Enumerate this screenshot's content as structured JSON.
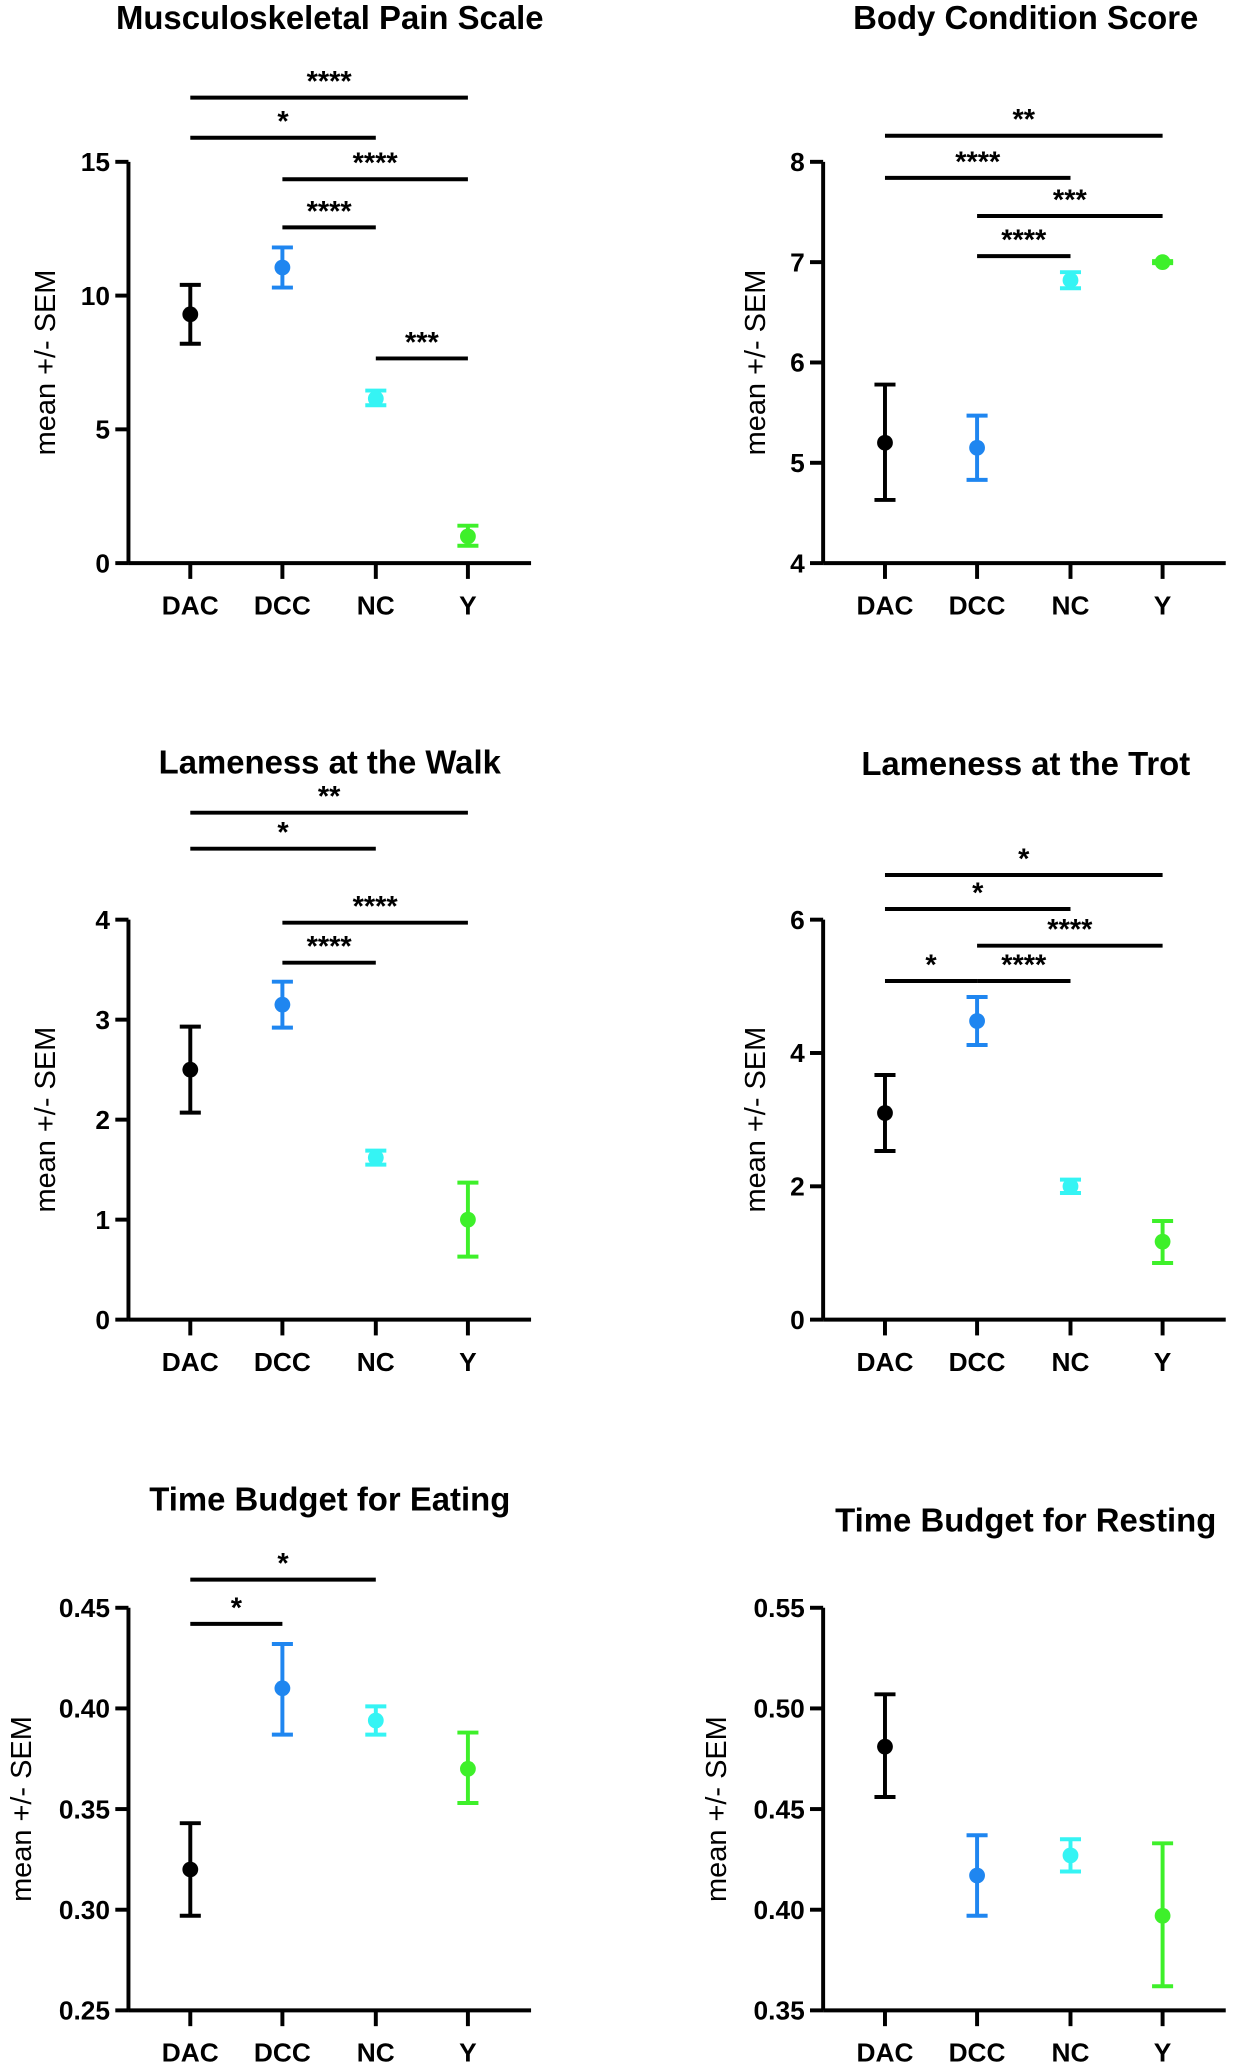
{
  "colors": {
    "DAC": "#000000",
    "DCC": "#1f86f0",
    "NC": "#35f4f4",
    "Y": "#3ef02a"
  },
  "chart_data": [
    {
      "type": "scatter",
      "title": "Musculoskeletal Pain Scale",
      "ylabel": "mean +/- SEM",
      "categories": [
        "DAC",
        "DCC",
        "NC",
        "Y"
      ],
      "ylim": [
        0,
        15
      ],
      "yticks": [
        0,
        5,
        10,
        15
      ],
      "ytick_labels": [
        "0",
        "5",
        "10",
        "15"
      ],
      "mean": [
        9.3,
        11.05,
        6.15,
        1.0
      ],
      "sem_low": [
        8.2,
        10.3,
        5.9,
        0.65
      ],
      "sem_high": [
        10.4,
        11.8,
        6.45,
        1.4
      ],
      "significance": [
        {
          "from": "DAC",
          "to": "Y",
          "label": "****",
          "y": 17.4
        },
        {
          "from": "DAC",
          "to": "NC",
          "label": "*",
          "y": 15.9
        },
        {
          "from": "DCC",
          "to": "Y",
          "label": "****",
          "y": 14.35
        },
        {
          "from": "DCC",
          "to": "NC",
          "label": "****",
          "y": 12.55
        },
        {
          "from": "NC",
          "to": "Y",
          "label": "***",
          "y": 7.65
        }
      ]
    },
    {
      "type": "scatter",
      "title": "Body Condition Score",
      "ylabel": "mean +/- SEM",
      "categories": [
        "DAC",
        "DCC",
        "NC",
        "Y"
      ],
      "ylim": [
        4,
        8
      ],
      "yticks": [
        4,
        5,
        6,
        7,
        8
      ],
      "ytick_labels": [
        "4",
        "5",
        "6",
        "7",
        "8"
      ],
      "mean": [
        5.2,
        5.15,
        6.82,
        7.0
      ],
      "sem_low": [
        4.63,
        4.83,
        6.74,
        6.99
      ],
      "sem_high": [
        5.78,
        5.47,
        6.9,
        7.01
      ],
      "significance": [
        {
          "from": "DAC",
          "to": "Y",
          "label": "**",
          "y": 8.26
        },
        {
          "from": "DAC",
          "to": "NC",
          "label": "****",
          "y": 7.84
        },
        {
          "from": "DCC",
          "to": "Y",
          "label": "***",
          "y": 7.46
        },
        {
          "from": "DCC",
          "to": "NC",
          "label": "****",
          "y": 7.06
        }
      ]
    },
    {
      "type": "scatter",
      "title": "Lameness at the Walk",
      "ylabel": "mean +/- SEM",
      "categories": [
        "DAC",
        "DCC",
        "NC",
        "Y"
      ],
      "ylim": [
        0,
        4
      ],
      "yticks": [
        0,
        1,
        2,
        3,
        4
      ],
      "ytick_labels": [
        "0",
        "1",
        "2",
        "3",
        "4"
      ],
      "mean": [
        2.5,
        3.15,
        1.62,
        1.0
      ],
      "sem_low": [
        2.07,
        2.92,
        1.55,
        0.63
      ],
      "sem_high": [
        2.93,
        3.38,
        1.69,
        1.37
      ],
      "significance": [
        {
          "from": "DAC",
          "to": "Y",
          "label": "**",
          "y": 5.07
        },
        {
          "from": "DAC",
          "to": "NC",
          "label": "*",
          "y": 4.71
        },
        {
          "from": "DCC",
          "to": "Y",
          "label": "****",
          "y": 3.97
        },
        {
          "from": "DCC",
          "to": "NC",
          "label": "****",
          "y": 3.57
        }
      ]
    },
    {
      "type": "scatter",
      "title": "Lameness at the Trot",
      "ylabel": "mean +/- SEM",
      "categories": [
        "DAC",
        "DCC",
        "NC",
        "Y"
      ],
      "ylim": [
        0,
        6
      ],
      "yticks": [
        0,
        2,
        4,
        6
      ],
      "ytick_labels": [
        "0",
        "2",
        "4",
        "6"
      ],
      "mean": [
        3.1,
        4.48,
        2.0,
        1.17
      ],
      "sem_low": [
        2.53,
        4.12,
        1.9,
        0.85
      ],
      "sem_high": [
        3.67,
        4.84,
        2.1,
        1.48
      ],
      "significance": [
        {
          "from": "DAC",
          "to": "Y",
          "label": "*",
          "y": 6.67
        },
        {
          "from": "DAC",
          "to": "NC",
          "label": "*",
          "y": 6.16
        },
        {
          "from": "DCC",
          "to": "Y",
          "label": "****",
          "y": 5.61
        },
        {
          "from": "DAC",
          "to": "DCC",
          "label": "*",
          "y": 5.08
        },
        {
          "from": "DCC",
          "to": "NC",
          "label": "****",
          "y": 5.08
        }
      ]
    },
    {
      "type": "scatter",
      "title": "Time Budget for Eating",
      "ylabel": "mean +/- SEM",
      "categories": [
        "DAC",
        "DCC",
        "NC",
        "Y"
      ],
      "ylim": [
        0.25,
        0.45
      ],
      "yticks": [
        0.25,
        0.3,
        0.35,
        0.4,
        0.45
      ],
      "ytick_labels": [
        "0.25",
        "0.30",
        "0.35",
        "0.40",
        "0.45"
      ],
      "mean": [
        0.32,
        0.41,
        0.394,
        0.37
      ],
      "sem_low": [
        0.297,
        0.387,
        0.387,
        0.353
      ],
      "sem_high": [
        0.343,
        0.432,
        0.401,
        0.388
      ],
      "significance": [
        {
          "from": "DAC",
          "to": "NC",
          "label": "*",
          "y": 0.464
        },
        {
          "from": "DAC",
          "to": "DCC",
          "label": "*",
          "y": 0.442
        }
      ]
    },
    {
      "type": "scatter",
      "title": "Time Budget for Resting",
      "ylabel": "mean +/- SEM",
      "categories": [
        "DAC",
        "DCC",
        "NC",
        "Y"
      ],
      "ylim": [
        0.35,
        0.55
      ],
      "yticks": [
        0.35,
        0.4,
        0.45,
        0.5,
        0.55
      ],
      "ytick_labels": [
        "0.35",
        "0.40",
        "0.45",
        "0.50",
        "0.55"
      ],
      "mean": [
        0.481,
        0.417,
        0.427,
        0.397
      ],
      "sem_low": [
        0.456,
        0.397,
        0.419,
        0.362
      ],
      "sem_high": [
        0.507,
        0.437,
        0.435,
        0.433
      ],
      "significance": []
    }
  ]
}
